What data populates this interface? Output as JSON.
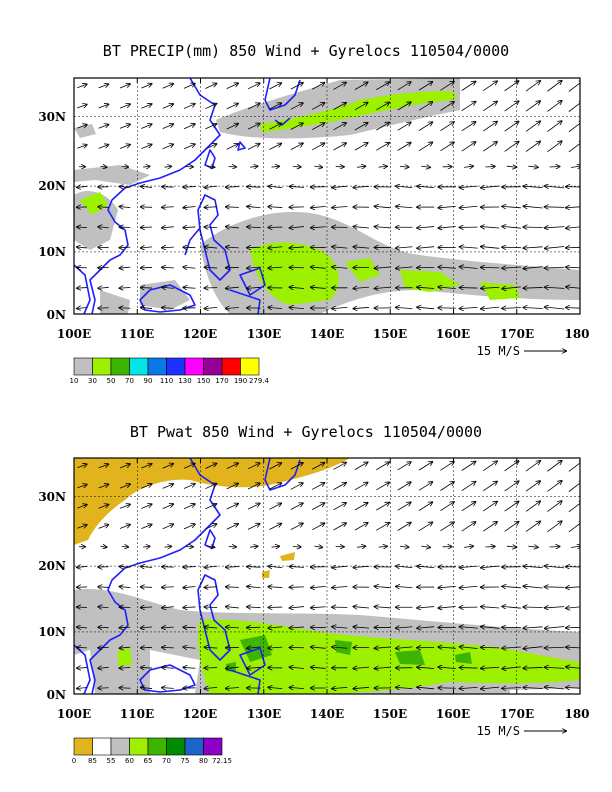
{
  "map1": {
    "title": "BT PRECIP(mm) 850 Wind + Gyrelocs 110504/0000",
    "lat_labels": [
      "30N",
      "20N",
      "10N",
      "0N"
    ],
    "lon_labels": [
      "100E",
      "110E",
      "120E",
      "130E",
      "140E",
      "150E",
      "160E",
      "170E",
      "180"
    ],
    "vector_scale": "15 M/S",
    "colorbar_labels": [
      "10",
      "30",
      "50",
      "70",
      "90",
      "110",
      "130",
      "150",
      "170",
      "190",
      "279.4"
    ],
    "colorbar_colors": [
      "#c0c0c0",
      "#9cf000",
      "#3cb400",
      "#00e6e6",
      "#0a78e6",
      "#1e32ff",
      "#ff00ff",
      "#960096",
      "#ff0000",
      "#ffff00"
    ]
  },
  "map2": {
    "title": "BT Pwat 850 Wind + Gyrelocs 110504/0000",
    "lat_labels": [
      "30N",
      "20N",
      "10N",
      "0N"
    ],
    "lon_labels": [
      "100E",
      "110E",
      "120E",
      "130E",
      "140E",
      "150E",
      "160E",
      "170E",
      "180"
    ],
    "vector_scale": "15 M/S",
    "colorbar_labels": [
      "0",
      "85",
      "55",
      "60",
      "65",
      "70",
      "75",
      "80",
      "72.15"
    ],
    "colorbar_colors": [
      "#e1b41e",
      "#ffffff",
      "#c0c0c0",
      "#9cf000",
      "#3cb400",
      "#008c00",
      "#1e64c8",
      "#8c00c8"
    ]
  },
  "colors": {
    "coast": "#1e1eff",
    "land_gray": "#c0c0c0",
    "green": "#9cf000",
    "gold": "#e1b41e"
  }
}
